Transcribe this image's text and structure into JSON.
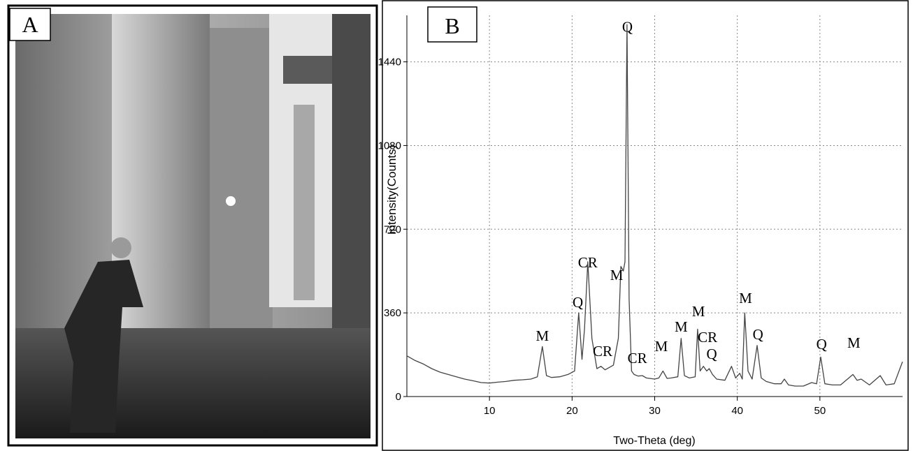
{
  "panel_a": {
    "label": "A"
  },
  "chart_data": {
    "type": "line",
    "panel_label": "B",
    "x_label": "Two-Theta (deg)",
    "y_label": "Intensity(Counts)",
    "xlim": [
      0,
      60
    ],
    "ylim": [
      0,
      1640
    ],
    "xticks": [
      10,
      20,
      30,
      40,
      50
    ],
    "yticks": [
      0,
      360,
      720,
      1080,
      1440
    ],
    "grid": true,
    "series": [
      {
        "color": "#444444",
        "x": [
          0,
          1,
          2,
          3,
          4,
          5,
          6,
          7,
          8,
          9,
          10,
          11,
          12,
          13,
          14,
          15,
          15.8,
          16.4,
          16.9,
          17.5,
          18.5,
          19.5,
          20.3,
          20.8,
          21.2,
          21.5,
          21.9,
          22.4,
          23,
          23.5,
          24,
          25,
          25.6,
          25.9,
          26.2,
          26.4,
          26.65,
          26.9,
          27.2,
          27.5,
          28,
          28.5,
          29,
          30,
          30.5,
          31,
          31.5,
          32,
          32.8,
          33.2,
          33.6,
          34.2,
          34.9,
          35.2,
          35.5,
          35.9,
          36.3,
          36.6,
          37,
          37.5,
          38.5,
          39.3,
          39.8,
          40.3,
          40.6,
          40.9,
          41.3,
          41.8,
          42.4,
          42.9,
          43.5,
          44.5,
          45.3,
          45.7,
          46.2,
          47,
          48,
          49,
          49.6,
          50.1,
          50.6,
          51.5,
          52.5,
          53.5,
          54,
          54.5,
          55,
          56,
          57.3,
          58,
          59,
          60
        ],
        "values": [
          175,
          155,
          140,
          120,
          105,
          95,
          85,
          75,
          68,
          60,
          58,
          62,
          65,
          70,
          72,
          75,
          85,
          215,
          90,
          82,
          85,
          95,
          110,
          360,
          160,
          290,
          580,
          250,
          120,
          130,
          115,
          135,
          250,
          560,
          540,
          580,
          1600,
          420,
          110,
          95,
          88,
          90,
          80,
          75,
          80,
          110,
          78,
          80,
          85,
          250,
          90,
          80,
          85,
          290,
          110,
          130,
          110,
          120,
          95,
          75,
          70,
          130,
          80,
          100,
          75,
          360,
          110,
          75,
          220,
          80,
          65,
          55,
          55,
          75,
          50,
          45,
          45,
          60,
          55,
          170,
          55,
          50,
          50,
          80,
          95,
          70,
          75,
          50,
          90,
          50,
          55,
          150
        ]
      }
    ],
    "annotations": [
      {
        "text": "M",
        "x": 16.4,
        "y": 264
      },
      {
        "text": "Q",
        "x": 20.7,
        "y": 408
      },
      {
        "text": "CR",
        "x": 21.9,
        "y": 579
      },
      {
        "text": "CR",
        "x": 23.7,
        "y": 198
      },
      {
        "text": "M",
        "x": 25.4,
        "y": 525
      },
      {
        "text": "Q",
        "x": 26.7,
        "y": 1593
      },
      {
        "text": "CR",
        "x": 27.9,
        "y": 168
      },
      {
        "text": "M",
        "x": 30.8,
        "y": 219
      },
      {
        "text": "M",
        "x": 33.2,
        "y": 303
      },
      {
        "text": "M",
        "x": 35.3,
        "y": 369
      },
      {
        "text": "CR",
        "x": 36.4,
        "y": 258
      },
      {
        "text": "Q",
        "x": 36.9,
        "y": 186
      },
      {
        "text": "M",
        "x": 41.0,
        "y": 426
      },
      {
        "text": "Q",
        "x": 42.5,
        "y": 270
      },
      {
        "text": "Q",
        "x": 50.2,
        "y": 228
      },
      {
        "text": "M",
        "x": 54.1,
        "y": 234
      }
    ]
  }
}
